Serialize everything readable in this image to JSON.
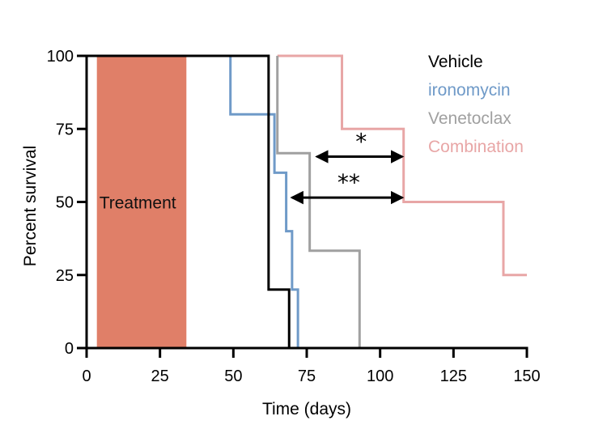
{
  "chart_data": {
    "type": "line",
    "subtype": "kaplan-meier-step",
    "xlabel": "Time (days)",
    "ylabel": "Percent survival",
    "xlim": [
      0,
      150
    ],
    "ylim": [
      0,
      100
    ],
    "xticks": [
      0,
      25,
      50,
      75,
      100,
      125,
      150
    ],
    "yticks": [
      0,
      25,
      50,
      75,
      100
    ],
    "grid": false,
    "legend_position": "top-right",
    "series": [
      {
        "name": "Vehicle",
        "color": "#000000",
        "x": [
          0,
          62,
          62,
          69,
          69
        ],
        "y": [
          100,
          100,
          20,
          20,
          0
        ]
      },
      {
        "name": "ironomycin",
        "color": "#6f9ac8",
        "x": [
          49,
          49,
          64,
          64,
          68,
          68,
          70,
          70,
          72,
          72,
          77,
          77
        ],
        "y": [
          100,
          80,
          80,
          60,
          60,
          40,
          40,
          20,
          20,
          0,
          0,
          0
        ]
      },
      {
        "name": "Venetoclax",
        "color": "#a0a0a0",
        "x": [
          65,
          65,
          76,
          76,
          93,
          93
        ],
        "y": [
          100,
          66.7,
          66.7,
          33.3,
          33.3,
          0
        ]
      },
      {
        "name": "Combination",
        "color": "#e8a6a6",
        "x": [
          65,
          87,
          87,
          108,
          108,
          142,
          142,
          150
        ],
        "y": [
          100,
          100,
          75,
          75,
          50,
          50,
          25,
          25
        ]
      }
    ],
    "annotations": [
      {
        "type": "shaded-region",
        "label": "Treatment",
        "x_start": 3.5,
        "x_end": 34,
        "color": "#e07f68"
      },
      {
        "type": "double-arrow",
        "label": "*",
        "x_start": 78.5,
        "x_end": 107.5,
        "y": 65.5
      },
      {
        "type": "double-arrow",
        "label": "**",
        "x_start": 70,
        "x_end": 107.5,
        "y": 51.5
      }
    ]
  }
}
